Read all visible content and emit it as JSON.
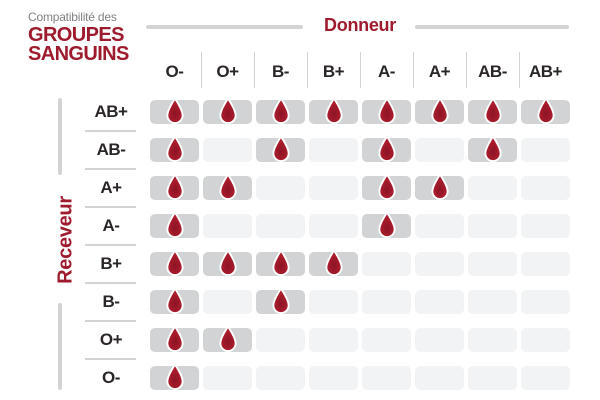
{
  "title": {
    "kicker": "Compatibilité des",
    "line1": "GROUPES",
    "line2": "SANGUINS"
  },
  "axes": {
    "donor_label": "Donneur",
    "receiver_label": "Receveur"
  },
  "icons": {
    "cell_marker": "blood-drop-icon"
  },
  "colors": {
    "accent_red": "#9e1b2e",
    "drop_red": "#a81c2c",
    "drop_red_dark": "#8c1424",
    "drop_stroke": "#ffffff",
    "cell_filled": "#d1d3d4",
    "cell_empty": "#f2f3f4",
    "line_gray": "#d1d3d4",
    "text_dark": "#2a2627",
    "text_gray": "#808285",
    "background": "#ffffff"
  },
  "chart_data": {
    "type": "heatmap",
    "title": "Compatibilité des GROUPES SANGUINS",
    "x_axis_label": "Donneur",
    "y_axis_label": "Receveur",
    "columns": [
      "O-",
      "O+",
      "B-",
      "B+",
      "A-",
      "A+",
      "AB-",
      "AB+"
    ],
    "rows": [
      "AB+",
      "AB-",
      "A+",
      "A-",
      "B+",
      "B-",
      "O+",
      "O-"
    ],
    "matrix": [
      [
        1,
        1,
        1,
        1,
        1,
        1,
        1,
        1
      ],
      [
        1,
        0,
        1,
        0,
        1,
        0,
        1,
        0
      ],
      [
        1,
        1,
        0,
        0,
        1,
        1,
        0,
        0
      ],
      [
        1,
        0,
        0,
        0,
        1,
        0,
        0,
        0
      ],
      [
        1,
        1,
        1,
        1,
        0,
        0,
        0,
        0
      ],
      [
        1,
        0,
        1,
        0,
        0,
        0,
        0,
        0
      ],
      [
        1,
        1,
        0,
        0,
        0,
        0,
        0,
        0
      ],
      [
        1,
        0,
        0,
        0,
        0,
        0,
        0,
        0
      ]
    ],
    "marker_meaning": "compatible"
  }
}
